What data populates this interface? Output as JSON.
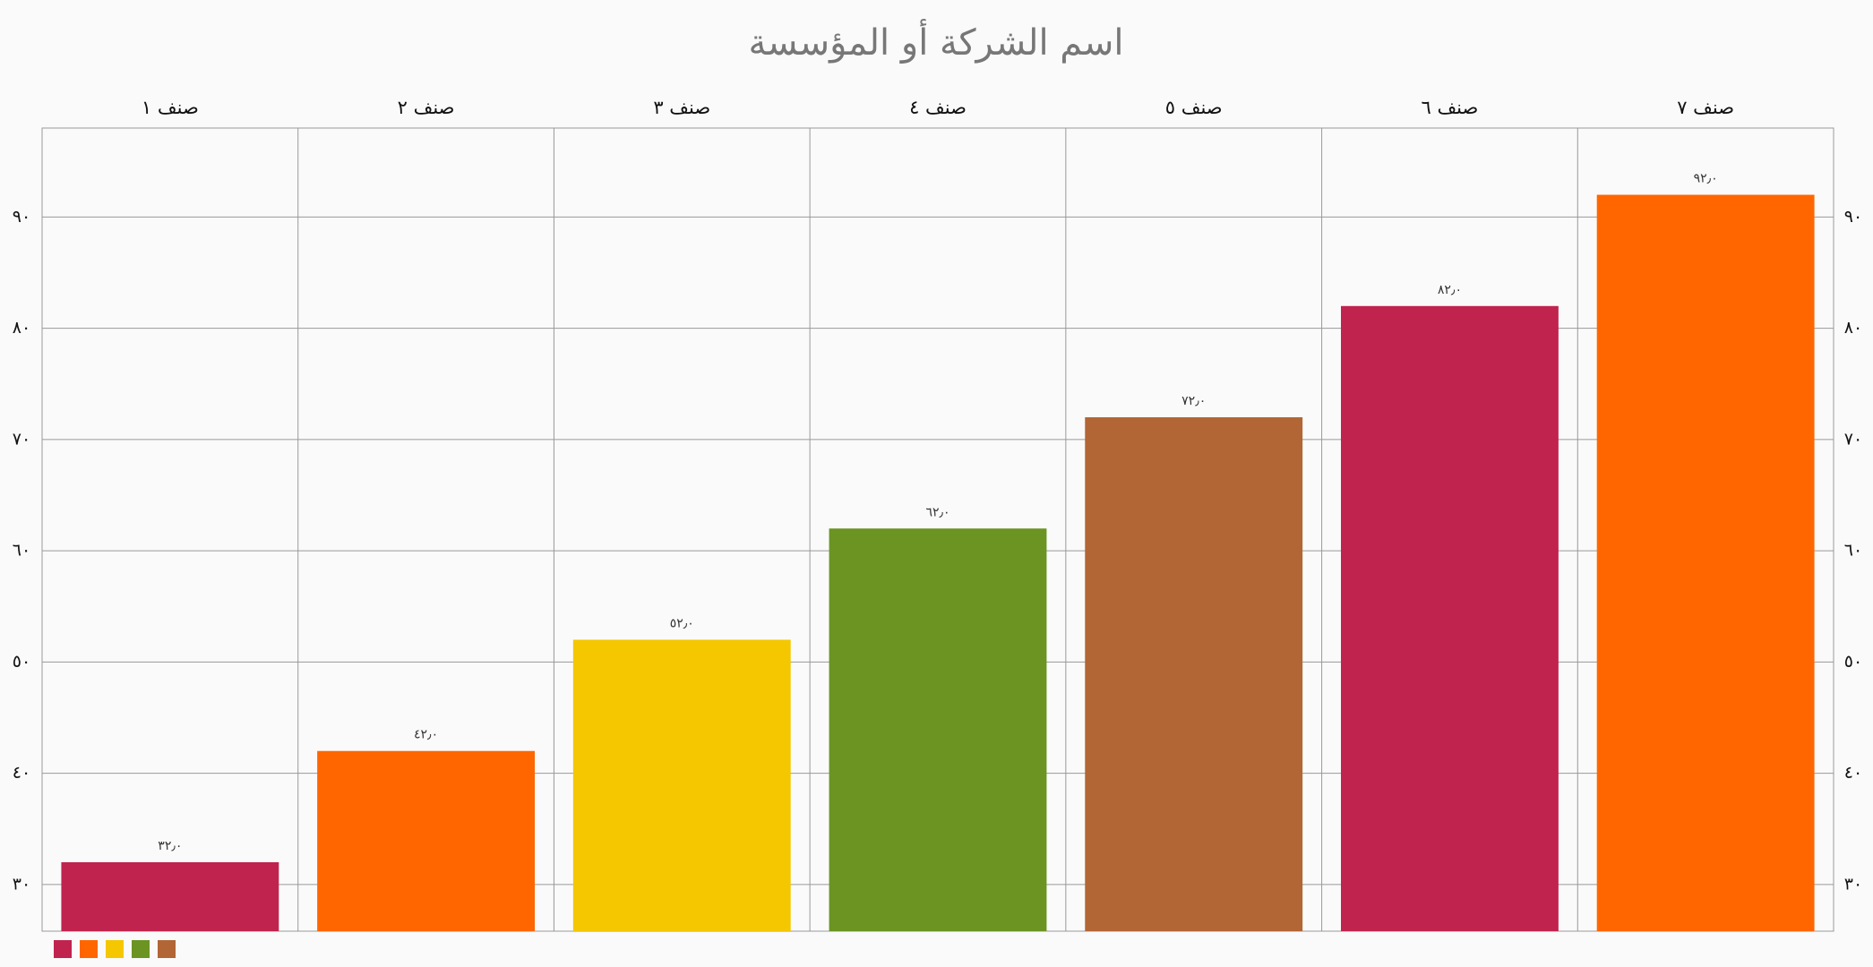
{
  "chart_data": {
    "type": "bar",
    "title": "اسم الشركة أو المؤسسة",
    "categories": [
      "صنف ١",
      "صنف ٢",
      "صنف ٣",
      "صنف ٤",
      "صنف ٥",
      "صنف ٦",
      "صنف ٧"
    ],
    "values": [
      32,
      42,
      52,
      62,
      72,
      82,
      92
    ],
    "value_labels": [
      "٣٢٫٠",
      "٤٢٫٠",
      "٥٢٫٠",
      "٦٢٫٠",
      "٧٢٫٠",
      "٨٢٫٠",
      "٩٢٫٠"
    ],
    "colors": [
      "#c0234e",
      "#ff6600",
      "#f4c700",
      "#6b9423",
      "#b26535",
      "#c0234e",
      "#ff6600"
    ],
    "ylim": [
      25.8,
      98
    ],
    "yticks": [
      {
        "value": 30,
        "label": "٣٠"
      },
      {
        "value": 40,
        "label": "٤٠"
      },
      {
        "value": 50,
        "label": "٥٠"
      },
      {
        "value": 60,
        "label": "٦٠"
      },
      {
        "value": 70,
        "label": "٧٠"
      },
      {
        "value": 80,
        "label": "٨٠"
      },
      {
        "value": 90,
        "label": "٩٠"
      }
    ],
    "grid": true
  }
}
